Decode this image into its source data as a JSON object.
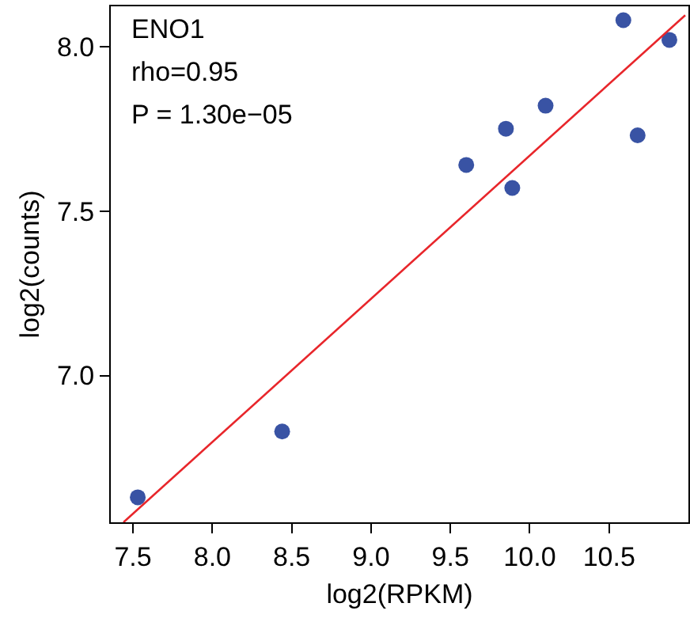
{
  "chart_data": {
    "type": "scatter",
    "xlabel": "log2(RPKM)",
    "ylabel": "log2(counts)",
    "annotations": [
      "ENO1",
      "rho=0.95",
      "P = 1.30e−05"
    ],
    "series": [
      {
        "marker": "circle",
        "color": "#3953a4",
        "x": [
          7.53,
          8.44,
          9.6,
          9.85,
          9.89,
          10.1,
          10.59,
          10.68,
          10.88
        ],
        "values": [
          6.63,
          6.83,
          7.64,
          7.75,
          7.57,
          7.82,
          8.08,
          7.73,
          8.02
        ]
      },
      {
        "type": "line",
        "color": "#e8262b",
        "x": [
          7.44,
          10.98
        ],
        "values": [
          6.554,
          8.095
        ]
      }
    ],
    "xlim": [
      7.36,
      11.0
    ],
    "ylim": [
      6.554,
      8.122
    ],
    "xticks": [
      {
        "value": 7.5,
        "label": "7.5"
      },
      {
        "value": 8,
        "label": "8.0"
      },
      {
        "value": 8.5,
        "label": "8.5"
      },
      {
        "value": 9,
        "label": "9.0"
      },
      {
        "value": 9.5,
        "label": "9.5"
      },
      {
        "value": 10,
        "label": "10.0"
      },
      {
        "value": 10.5,
        "label": "10.5"
      }
    ],
    "yticks": [
      {
        "value": 7,
        "label": "7.0"
      },
      {
        "value": 7.5,
        "label": "7.5"
      },
      {
        "value": 8,
        "label": "8.0"
      }
    ],
    "grid": false
  }
}
